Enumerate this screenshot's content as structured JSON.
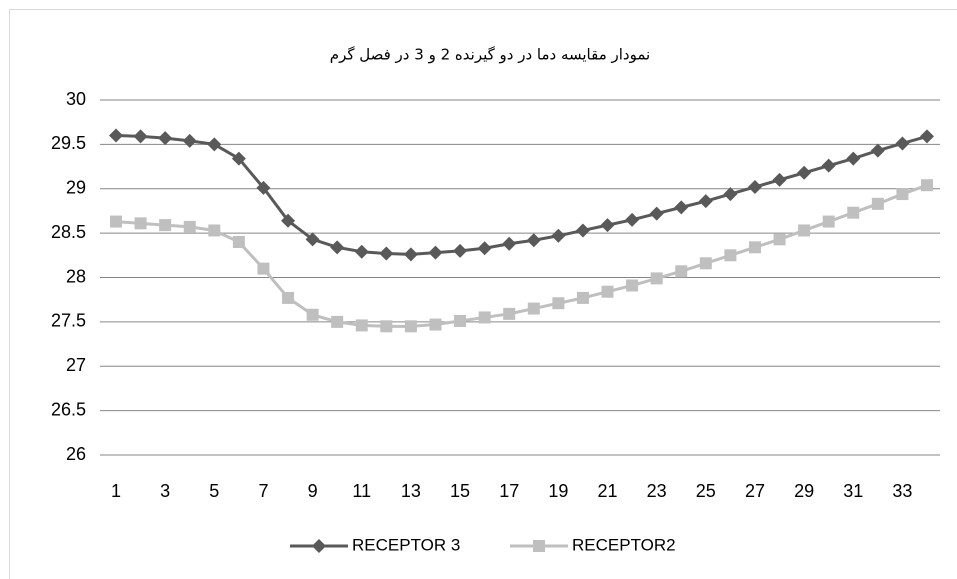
{
  "chart_data": {
    "type": "line",
    "title": "نمودار مقایسه دما در دو گیرنده 2 و 3 در فصل گرم",
    "categories": [
      1,
      null,
      3,
      null,
      5,
      null,
      7,
      null,
      9,
      null,
      11,
      null,
      13,
      null,
      15,
      null,
      17,
      null,
      19,
      null,
      21,
      null,
      23,
      null,
      25,
      null,
      27,
      null,
      29,
      null,
      31,
      null,
      33,
      null
    ],
    "series": [
      {
        "name": "RECEPTOR 3",
        "color": "#595959",
        "marker": "diamond",
        "values": [
          29.6,
          29.59,
          29.57,
          29.54,
          29.5,
          29.34,
          29.01,
          28.64,
          28.43,
          28.34,
          28.29,
          28.27,
          28.26,
          28.28,
          28.3,
          28.33,
          28.38,
          28.42,
          28.47,
          28.53,
          28.59,
          28.65,
          28.72,
          28.79,
          28.86,
          28.94,
          29.02,
          29.1,
          29.18,
          29.26,
          29.34,
          29.43,
          29.51,
          29.59
        ]
      },
      {
        "name": "RECEPTOR2",
        "color": "#bfbfbf",
        "marker": "square",
        "values": [
          28.63,
          28.61,
          28.59,
          28.57,
          28.53,
          28.4,
          28.1,
          27.77,
          27.58,
          27.5,
          27.46,
          27.45,
          27.45,
          27.47,
          27.51,
          27.55,
          27.59,
          27.65,
          27.71,
          27.77,
          27.84,
          27.91,
          27.99,
          28.07,
          28.16,
          28.25,
          28.34,
          28.43,
          28.53,
          28.63,
          28.73,
          28.83,
          28.94,
          29.04
        ]
      }
    ],
    "ylim": [
      26,
      30
    ],
    "yticks": [
      26,
      26.5,
      27,
      27.5,
      28,
      28.5,
      29,
      29.5,
      30
    ],
    "grid": true,
    "legend": "bottom"
  }
}
